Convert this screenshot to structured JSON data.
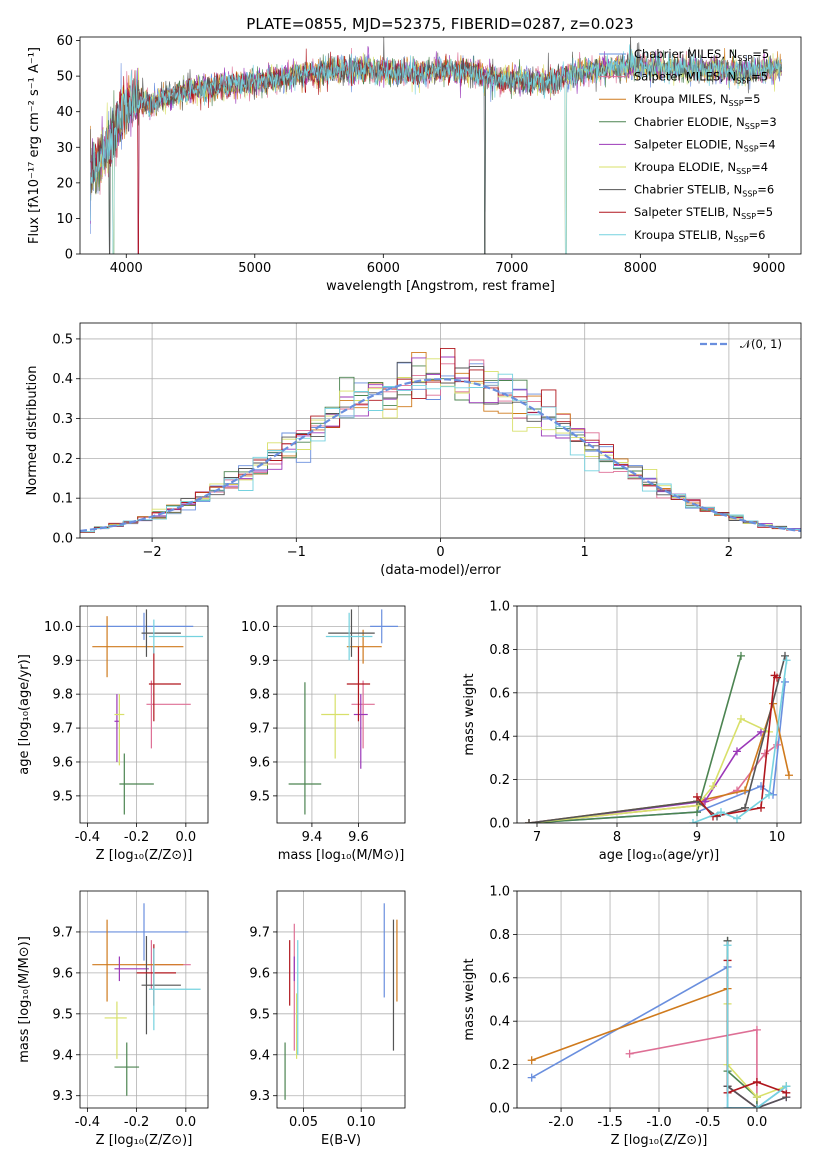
{
  "figure_title": "PLATE=0855, MJD=52375, FIBERID=0287, z=0.023",
  "colors": [
    "#6a8fde",
    "#de6f95",
    "#cf7a1d",
    "#4c8451",
    "#9b38b8",
    "#d8e06a",
    "#555555",
    "#b0171e",
    "#75d2df"
  ],
  "chart_data": [
    {
      "id": "spectrum",
      "type": "line",
      "xlabel": "wavelength [Angstrom, rest frame]",
      "ylabel": "Flux [fλ10⁻¹⁷ erg cm⁻² s⁻¹ A⁻¹]",
      "xlim": [
        3640,
        9250
      ],
      "ylim": [
        0,
        61
      ],
      "xticks": [
        4000,
        5000,
        6000,
        7000,
        8000,
        9000
      ],
      "yticks": [
        0,
        10,
        20,
        30,
        40,
        50,
        60
      ],
      "continuum": {
        "x": [
          3720,
          3800,
          3850,
          3900,
          3950,
          4000,
          4100,
          4200,
          4300,
          4500,
          4700,
          4900,
          5100,
          5300,
          5500,
          5700,
          5900,
          6100,
          6300,
          6500,
          6700,
          6900,
          7100,
          7300,
          7500,
          7700,
          7900,
          8200,
          8500,
          8800,
          9000,
          9100
        ],
        "y": [
          22,
          27,
          30,
          33,
          38,
          42,
          43,
          42,
          44,
          46,
          47,
          48,
          49,
          50,
          51,
          52,
          52,
          51,
          51,
          52,
          51,
          49,
          49,
          48,
          51,
          52,
          53,
          52,
          52,
          51,
          52,
          52
        ]
      },
      "dropouts_x": [
        3870,
        3900,
        4095,
        6790,
        7420
      ],
      "series": [
        {
          "name": "Chabrier MILES, N",
          "sub": "SSP",
          "suffix": "=5"
        },
        {
          "name": "Salpeter MILES, N",
          "sub": "SSP",
          "suffix": "=5"
        },
        {
          "name": "Kroupa MILES, N",
          "sub": "SSP",
          "suffix": "=5"
        },
        {
          "name": "Chabrier ELODIE, N",
          "sub": "SSP",
          "suffix": "=3"
        },
        {
          "name": "Salpeter ELODIE, N",
          "sub": "SSP",
          "suffix": "=4"
        },
        {
          "name": "Kroupa ELODIE, N",
          "sub": "SSP",
          "suffix": "=4"
        },
        {
          "name": "Chabrier STELIB, N",
          "sub": "SSP",
          "suffix": "=6"
        },
        {
          "name": "Salpeter STELIB, N",
          "sub": "SSP",
          "suffix": "=5"
        },
        {
          "name": "Kroupa STELIB, N",
          "sub": "SSP",
          "suffix": "=6"
        }
      ]
    },
    {
      "id": "residual_hist",
      "type": "histogram",
      "xlabel": "(data-model)/error",
      "ylabel": "Normed distribution",
      "xlim": [
        -2.5,
        2.5
      ],
      "ylim": [
        0,
        0.54
      ],
      "xticks": [
        -2,
        -1,
        0,
        1,
        2
      ],
      "yticks": [
        0.0,
        0.1,
        0.2,
        0.3,
        0.4,
        0.5
      ],
      "bin_width": 0.1,
      "legend": "𝒩(0, 1)",
      "gaussian": {
        "mean": 0,
        "sigma": 1
      }
    },
    {
      "id": "age_vs_Z",
      "type": "errorbar",
      "xlabel": "Z [log₁₀(Z/Z⊙)]",
      "ylabel": "age  [log₁₀(age/yr)]",
      "xlim": [
        -0.43,
        0.09
      ],
      "ylim": [
        9.42,
        10.06
      ],
      "xticks": [
        -0.4,
        -0.2,
        0.0
      ],
      "yticks": [
        9.5,
        9.6,
        9.7,
        9.8,
        9.9,
        10.0
      ],
      "points": [
        {
          "x": -0.17,
          "xerr": [
            0.22,
            0.2
          ],
          "y": 10.0,
          "yerr": [
            0.04,
            0.04
          ]
        },
        {
          "x": -0.14,
          "xerr": [
            0.02,
            0.16
          ],
          "y": 9.77,
          "yerr": [
            0.13,
            0.07
          ]
        },
        {
          "x": -0.32,
          "xerr": [
            0.06,
            0.31
          ],
          "y": 9.94,
          "yerr": [
            0.09,
            0.09
          ]
        },
        {
          "x": -0.25,
          "xerr": [
            0.02,
            0.12
          ],
          "y": 9.535,
          "yerr": [
            0.09,
            0.09
          ]
        },
        {
          "x": -0.28,
          "xerr": [
            0.01,
            0.01
          ],
          "y": 9.72,
          "yerr": [
            0.12,
            0.08
          ]
        },
        {
          "x": -0.27,
          "xerr": [
            0.02,
            0.02
          ],
          "y": 9.74,
          "yerr": [
            0.15,
            0.06
          ]
        },
        {
          "x": -0.16,
          "xerr": [
            0.02,
            0.14
          ],
          "y": 9.98,
          "yerr": [
            0.07,
            0.07
          ]
        },
        {
          "x": -0.13,
          "xerr": [
            0.02,
            0.11
          ],
          "y": 9.83,
          "yerr": [
            0.11,
            0.11
          ]
        },
        {
          "x": -0.13,
          "xerr": [
            0.02,
            0.2
          ],
          "y": 9.97,
          "yerr": [
            0.05,
            0.05
          ]
        }
      ]
    },
    {
      "id": "age_vs_mass",
      "type": "errorbar",
      "xlabel": "mass [log₁₀(M/M⊙)]",
      "ylabel": "",
      "xlim": [
        9.25,
        9.8
      ],
      "ylim": [
        9.42,
        10.06
      ],
      "xticks": [
        9.4,
        9.6
      ],
      "yticks": [
        9.5,
        9.6,
        9.7,
        9.8,
        9.9,
        10.0
      ],
      "points": [
        {
          "x": 9.7,
          "xerr": [
            0.05,
            0.07
          ],
          "y": 10.0,
          "yerr": [
            0.05,
            0.05
          ]
        },
        {
          "x": 9.62,
          "xerr": [
            0.05,
            0.05
          ],
          "y": 9.77,
          "yerr": [
            0.13,
            0.07
          ]
        },
        {
          "x": 9.62,
          "xerr": [
            0.07,
            0.08
          ],
          "y": 9.94,
          "yerr": [
            0.05,
            0.05
          ]
        },
        {
          "x": 9.37,
          "xerr": [
            0.07,
            0.07
          ],
          "y": 9.535,
          "yerr": [
            0.09,
            0.3
          ]
        },
        {
          "x": 9.61,
          "xerr": [
            0.03,
            0.03
          ],
          "y": 9.74,
          "yerr": [
            0.16,
            0.06
          ]
        },
        {
          "x": 9.5,
          "xerr": [
            0.06,
            0.06
          ],
          "y": 9.74,
          "yerr": [
            0.13,
            0.06
          ]
        },
        {
          "x": 9.57,
          "xerr": [
            0.1,
            0.1
          ],
          "y": 9.98,
          "yerr": [
            0.07,
            0.07
          ]
        },
        {
          "x": 9.6,
          "xerr": [
            0.05,
            0.05
          ],
          "y": 9.83,
          "yerr": [
            0.11,
            0.11
          ]
        },
        {
          "x": 9.56,
          "xerr": [
            0.1,
            0.1
          ],
          "y": 9.97,
          "yerr": [
            0.07,
            0.07
          ]
        }
      ]
    },
    {
      "id": "mass_weight_vs_age",
      "type": "line",
      "xlabel": "age  [log₁₀(age/yr)]",
      "ylabel": "mass weight",
      "xlim": [
        6.75,
        10.3
      ],
      "ylim": [
        0,
        1
      ],
      "xticks": [
        7,
        8,
        9,
        10
      ],
      "yticks": [
        0.0,
        0.2,
        0.4,
        0.6,
        0.8,
        1.0
      ],
      "series": [
        {
          "x": [
            6.9,
            9.0,
            9.8,
            9.95,
            10.1
          ],
          "y": [
            0.0,
            0.05,
            0.17,
            0.13,
            0.65
          ]
        },
        {
          "x": [
            6.9,
            9.0,
            9.5,
            9.85,
            10.0
          ],
          "y": [
            0.0,
            0.08,
            0.15,
            0.32,
            0.36
          ]
        },
        {
          "x": [
            6.9,
            9.0,
            9.6,
            9.95,
            10.15
          ],
          "y": [
            0.0,
            0.1,
            0.15,
            0.55,
            0.22
          ]
        },
        {
          "x": [
            6.9,
            9.0,
            9.55
          ],
          "y": [
            0.0,
            0.05,
            0.77
          ]
        },
        {
          "x": [
            6.9,
            9.1,
            9.5,
            9.8
          ],
          "y": [
            0.0,
            0.1,
            0.33,
            0.42
          ]
        },
        {
          "x": [
            6.9,
            9.0,
            9.2,
            9.55,
            9.9
          ],
          "y": [
            0.0,
            0.08,
            0.17,
            0.48,
            0.42
          ]
        },
        {
          "x": [
            6.9,
            9.0,
            9.25,
            9.6,
            10.1
          ],
          "y": [
            0.0,
            0.1,
            0.03,
            0.07,
            0.77
          ]
        },
        {
          "x": [
            9.0,
            9.2,
            9.8,
            9.97,
            10.0
          ],
          "y": [
            0.12,
            0.03,
            0.07,
            0.68,
            0.67
          ]
        },
        {
          "x": [
            8.95,
            9.3,
            9.5,
            9.9,
            10.12
          ],
          "y": [
            0.0,
            0.05,
            0.02,
            0.13,
            0.75
          ]
        }
      ]
    },
    {
      "id": "mass_vs_Z",
      "type": "errorbar",
      "xlabel": "Z [log₁₀(Z/Z⊙)]",
      "ylabel": "mass [log₁₀(M/M⊙)]",
      "xlim": [
        -0.43,
        0.09
      ],
      "ylim": [
        9.27,
        9.8
      ],
      "xticks": [
        -0.4,
        -0.2,
        0.0
      ],
      "yticks": [
        9.3,
        9.4,
        9.5,
        9.6,
        9.7
      ],
      "points": [
        {
          "x": -0.17,
          "xerr": [
            0.22,
            0.18
          ],
          "y": 9.7,
          "yerr": [
            0.07,
            0.07
          ]
        },
        {
          "x": -0.14,
          "xerr": [
            0.06,
            0.16
          ],
          "y": 9.62,
          "yerr": [
            0.06,
            0.06
          ]
        },
        {
          "x": -0.32,
          "xerr": [
            0.06,
            0.31
          ],
          "y": 9.62,
          "yerr": [
            0.09,
            0.11
          ]
        },
        {
          "x": -0.24,
          "xerr": [
            0.05,
            0.05
          ],
          "y": 9.37,
          "yerr": [
            0.07,
            0.06
          ]
        },
        {
          "x": -0.27,
          "xerr": [
            0.02,
            0.12
          ],
          "y": 9.61,
          "yerr": [
            0.03,
            0.03
          ]
        },
        {
          "x": -0.28,
          "xerr": [
            0.05,
            0.04
          ],
          "y": 9.49,
          "yerr": [
            0.1,
            0.04
          ]
        },
        {
          "x": -0.16,
          "xerr": [
            0.02,
            0.14
          ],
          "y": 9.57,
          "yerr": [
            0.12,
            0.12
          ]
        },
        {
          "x": -0.13,
          "xerr": [
            0.07,
            0.09
          ],
          "y": 9.6,
          "yerr": [
            0.08,
            0.07
          ]
        },
        {
          "x": -0.13,
          "xerr": [
            0.02,
            0.19
          ],
          "y": 9.56,
          "yerr": [
            0.1,
            0.1
          ]
        }
      ]
    },
    {
      "id": "mass_vs_ebv",
      "type": "errorbar",
      "xlabel": "E(B-V)",
      "ylabel": "",
      "xlim": [
        0.027,
        0.138
      ],
      "ylim": [
        9.27,
        9.8
      ],
      "xticks": [
        0.05,
        0.1
      ],
      "yticks": [
        9.3,
        9.4,
        9.5,
        9.6,
        9.7
      ],
      "points": [
        {
          "x": 0.12,
          "y": 9.65,
          "yerr": [
            0.11,
            0.12
          ]
        },
        {
          "x": 0.042,
          "y": 9.56,
          "yerr": [
            0.15,
            0.16
          ]
        },
        {
          "x": 0.131,
          "y": 9.63,
          "yerr": [
            0.1,
            0.1
          ]
        },
        {
          "x": 0.034,
          "y": 9.36,
          "yerr": [
            0.07,
            0.07
          ]
        },
        {
          "x": 0.042,
          "y": 9.61,
          "yerr": [
            0.03,
            0.03
          ]
        },
        {
          "x": 0.044,
          "y": 9.47,
          "yerr": [
            0.08,
            0.08
          ]
        },
        {
          "x": 0.128,
          "y": 9.57,
          "yerr": [
            0.16,
            0.16
          ]
        },
        {
          "x": 0.038,
          "y": 9.6,
          "yerr": [
            0.08,
            0.08
          ]
        },
        {
          "x": 0.045,
          "y": 9.54,
          "yerr": [
            0.14,
            0.14
          ]
        }
      ]
    },
    {
      "id": "mass_weight_vs_Z",
      "type": "line",
      "xlabel": "Z [log₁₀(Z/Z⊙)]",
      "ylabel": "mass weight",
      "xlim": [
        -2.45,
        0.45
      ],
      "ylim": [
        0,
        1
      ],
      "xticks": [
        -2.0,
        -1.5,
        -1.0,
        -0.5,
        0.0
      ],
      "yticks": [
        0.0,
        0.2,
        0.4,
        0.6,
        0.8,
        1.0
      ],
      "series": [
        {
          "x": [
            -2.3,
            -0.3,
            -0.3,
            0.0,
            0.3
          ],
          "y": [
            0.14,
            0.65,
            0.0,
            0.0,
            0.1
          ]
        },
        {
          "x": [
            -1.3,
            0.0,
            0.0
          ],
          "y": [
            0.25,
            0.36,
            0.0
          ]
        },
        {
          "x": [
            -2.3,
            -0.3,
            -0.3,
            0.0
          ],
          "y": [
            0.22,
            0.55,
            0.1,
            0.0
          ]
        },
        {
          "x": [
            -0.3,
            -0.3,
            0.0,
            0.0
          ],
          "y": [
            0.77,
            0.17,
            0.05,
            0.0
          ]
        },
        {
          "x": [
            -0.3,
            0.0,
            0.3,
            0.3
          ],
          "y": [
            0.1,
            0.0,
            0.05,
            0.1
          ]
        },
        {
          "x": [
            -0.3,
            -0.3,
            0.0,
            0.3
          ],
          "y": [
            0.48,
            0.2,
            0.05,
            0.1
          ]
        },
        {
          "x": [
            -0.3,
            -0.3,
            0.0,
            0.3
          ],
          "y": [
            0.77,
            0.1,
            0.0,
            0.05
          ]
        },
        {
          "x": [
            -0.3,
            -0.3,
            0.0,
            0.3
          ],
          "y": [
            0.68,
            0.07,
            0.12,
            0.07
          ]
        },
        {
          "x": [
            -0.3,
            -0.3,
            0.0,
            0.3
          ],
          "y": [
            0.75,
            0.0,
            0.0,
            0.1
          ]
        }
      ]
    }
  ]
}
